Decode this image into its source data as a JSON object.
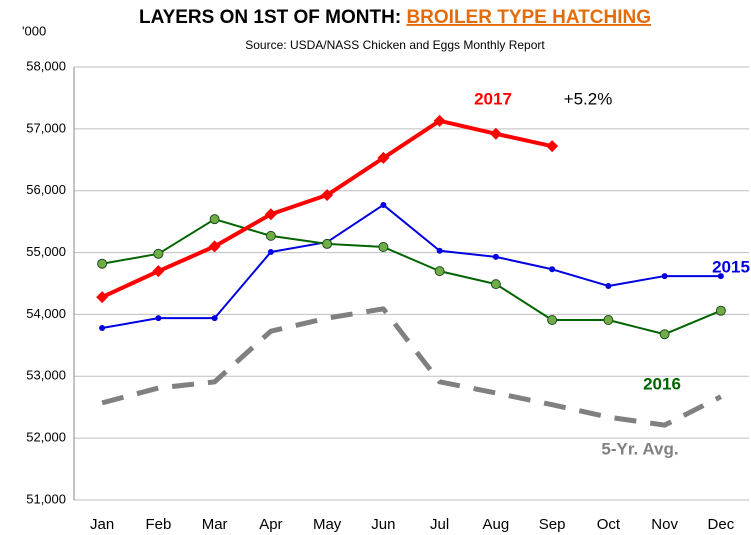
{
  "chart_data": {
    "type": "line",
    "title": "LAYERS ON 1ST OF MONTH: ",
    "title_highlight": "BROILER TYPE HATCHING",
    "subtitle": "Source: USDA/NASS Chicken and Eggs Monthly Report",
    "y_unit": "'000",
    "categories": [
      "Jan",
      "Feb",
      "Mar",
      "Apr",
      "May",
      "Jun",
      "Jul",
      "Aug",
      "Sep",
      "Oct",
      "Nov",
      "Dec"
    ],
    "series": [
      {
        "name": "2017",
        "color": "#ff0000",
        "marker": "diamond",
        "values": [
          54280,
          54700,
          55100,
          55620,
          55930,
          56530,
          57130,
          56920,
          56720,
          null,
          null,
          null
        ]
      },
      {
        "name": "2015",
        "color": "#0000e0",
        "marker": "dot",
        "values": [
          53780,
          53940,
          53940,
          55010,
          55170,
          55770,
          55030,
          54930,
          54730,
          54460,
          54620,
          54620
        ]
      },
      {
        "name": "2016",
        "color": "#006400",
        "marker": "circle",
        "values": [
          54820,
          54980,
          55540,
          55270,
          55140,
          55090,
          54700,
          54490,
          53910,
          53910,
          53680,
          54060
        ]
      },
      {
        "name": "5-Yr. Avg.",
        "color": "#808080",
        "marker": "none",
        "dashed": true,
        "values": [
          52570,
          52810,
          52910,
          53730,
          53940,
          54090,
          52910,
          52730,
          52540,
          52340,
          52210,
          52670
        ]
      }
    ],
    "annotations": [
      "+5.2%"
    ],
    "ylim": [
      51000,
      58000
    ],
    "yticks": [
      {
        "value": 51000,
        "label": "51,000"
      },
      {
        "value": 52000,
        "label": "52,000"
      },
      {
        "value": 53000,
        "label": "53,000"
      },
      {
        "value": 54000,
        "label": "54,000"
      },
      {
        "value": 55000,
        "label": "55,000"
      },
      {
        "value": 56000,
        "label": "56,000"
      },
      {
        "value": 57000,
        "label": "57,000"
      },
      {
        "value": 58000,
        "label": "58,000"
      }
    ],
    "grid": true
  }
}
